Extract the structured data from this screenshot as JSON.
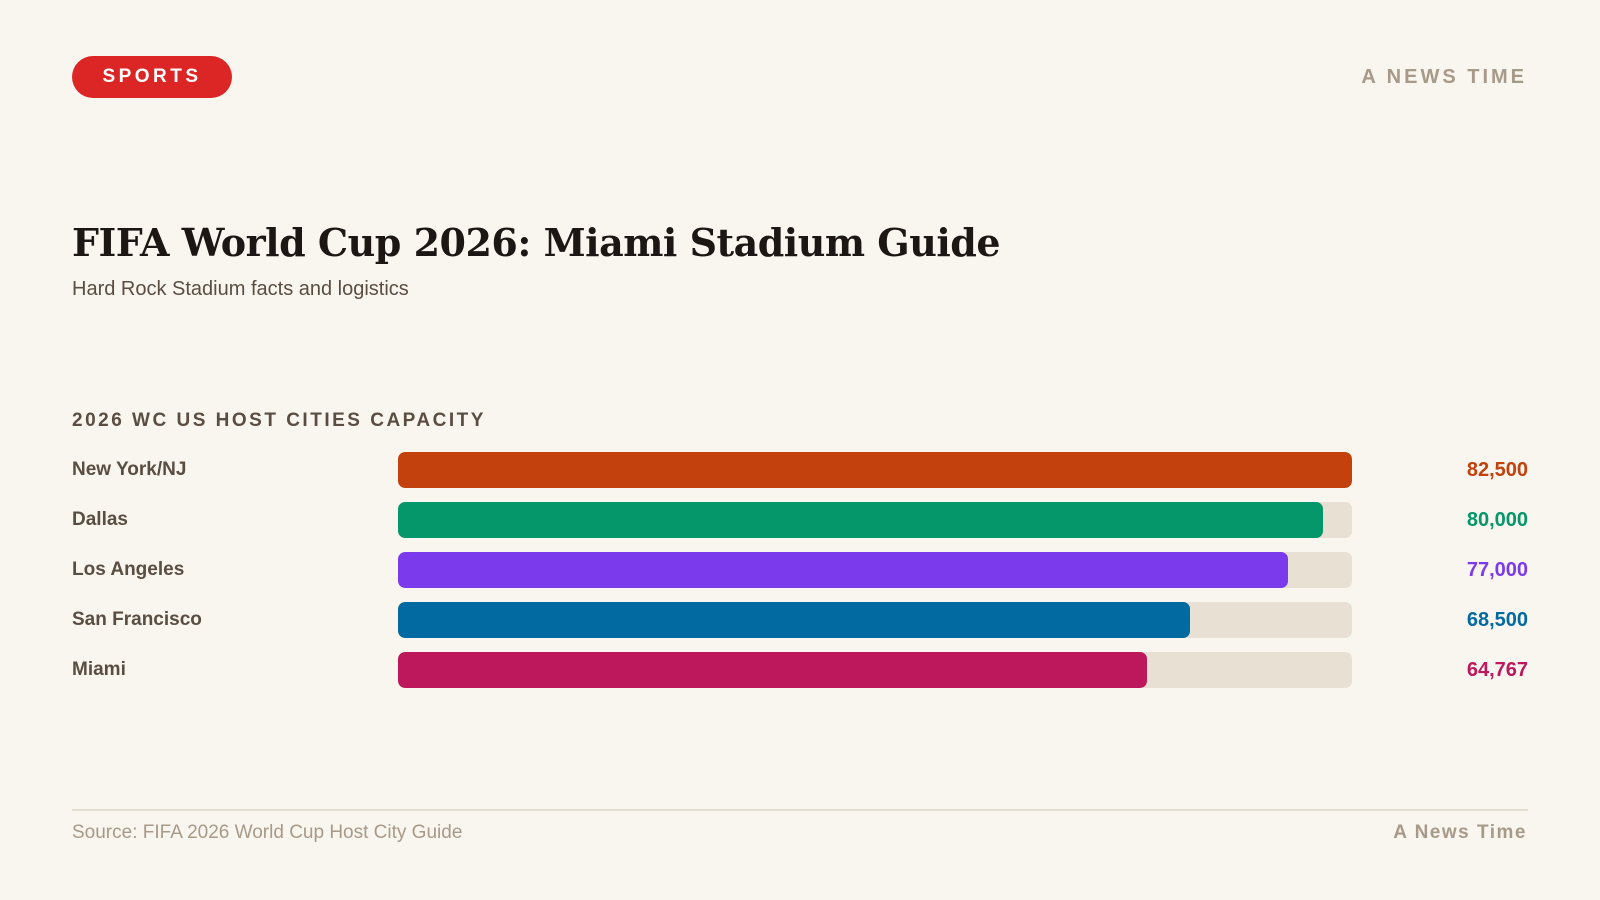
{
  "header": {
    "section_badge": "SPORTS",
    "brand": "A NEWS TIME"
  },
  "headline": {
    "title": "FIFA World Cup 2026: Miami Stadium Guide",
    "subtitle": "Hard Rock Stadium facts and logistics"
  },
  "chart_data": {
    "type": "bar",
    "orientation": "horizontal",
    "title": "2026 WC US HOST CITIES CAPACITY",
    "categories": [
      "New York/NJ",
      "Dallas",
      "Los Angeles",
      "San Francisco",
      "Miami"
    ],
    "values": [
      82500,
      80000,
      77000,
      68500,
      64767
    ],
    "value_labels": [
      "82,500",
      "80,000",
      "77,000",
      "68,500",
      "64,767"
    ],
    "colors": [
      "#c2410c",
      "#059669",
      "#7c3aed",
      "#0369a1",
      "#be185d"
    ],
    "track_color": "#e8e0d2",
    "xlim": [
      0,
      82500
    ],
    "grid": false
  },
  "footer": {
    "source": "Source: FIFA 2026 World Cup Host City Guide",
    "brand": "A News Time"
  }
}
